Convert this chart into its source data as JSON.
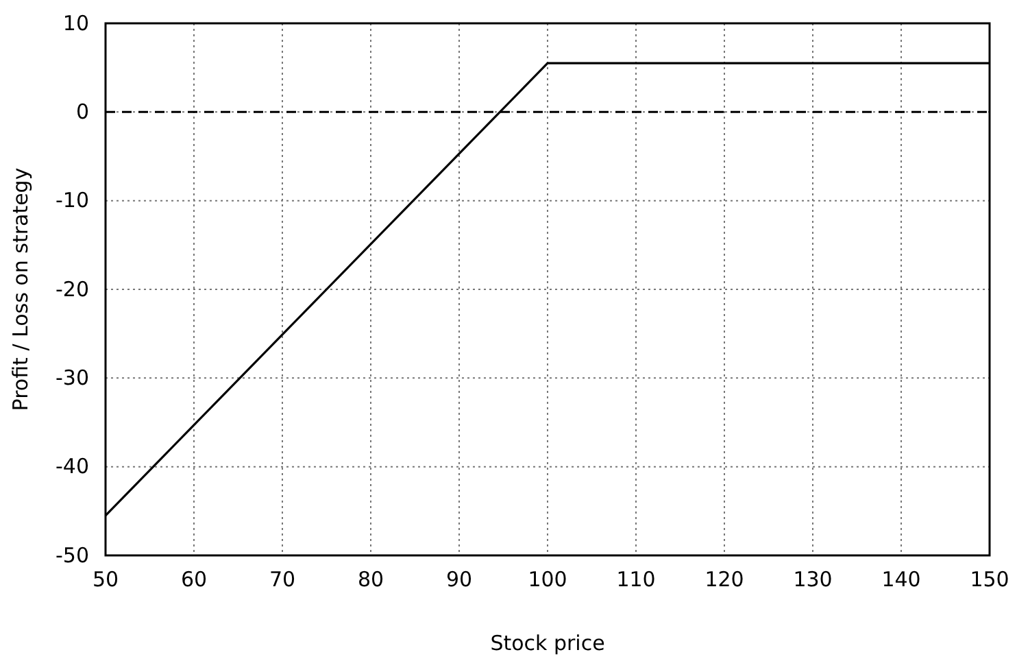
{
  "chart_data": {
    "type": "line",
    "xlabel": "Stock price",
    "ylabel": "Profit / Loss on strategy",
    "x": [
      50,
      100,
      150
    ],
    "series": [
      {
        "color": "#000000",
        "values": [
          -45.5,
          5.5,
          5.5
        ]
      }
    ],
    "xlim": [
      50,
      150
    ],
    "xticks": [
      50,
      60,
      70,
      80,
      90,
      100,
      110,
      120,
      130,
      140,
      150
    ],
    "ylim": [
      -50,
      10
    ],
    "yticks": [
      -50,
      -40,
      -30,
      -20,
      -10,
      0,
      10
    ],
    "grid": true,
    "line_style": "solid",
    "marker": "none",
    "ref_lines": [
      {
        "axis": "y",
        "value": 0,
        "color": "#000000",
        "line_style": "dashed"
      }
    ]
  }
}
